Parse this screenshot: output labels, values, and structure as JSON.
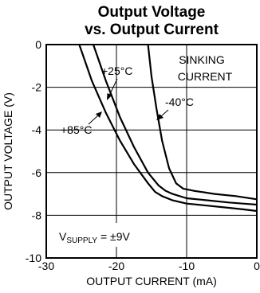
{
  "chart_data": {
    "type": "line",
    "title_line1": "Output Voltage",
    "title_line2": "vs. Output Current",
    "xlabel": "OUTPUT CURRENT (mA)",
    "ylabel": "OUTPUT VOLTAGE (V)",
    "xlim": [
      -30,
      0
    ],
    "ylim": [
      -10,
      0
    ],
    "xticks": [
      -30,
      -20,
      -10,
      0
    ],
    "yticks": [
      0,
      -2,
      -4,
      -6,
      -8,
      -10
    ],
    "grid": true,
    "series": [
      {
        "name": "+85°C",
        "color": "#000000",
        "x": [
          -25.3,
          -23.5,
          -21.5,
          -19.5,
          -17.5,
          -15.5,
          -14.5,
          -13.5,
          -12,
          -10,
          -7,
          -4,
          -2,
          0
        ],
        "y": [
          0,
          -1.7,
          -3.2,
          -4.5,
          -5.6,
          -6.5,
          -6.9,
          -7.1,
          -7.3,
          -7.45,
          -7.55,
          -7.65,
          -7.72,
          -7.8
        ]
      },
      {
        "name": "+25°C",
        "color": "#000000",
        "x": [
          -23.3,
          -21.5,
          -19.5,
          -17.5,
          -15.5,
          -14,
          -13,
          -12,
          -10,
          -7,
          -4,
          -2,
          0
        ],
        "y": [
          0,
          -1.7,
          -3.4,
          -4.8,
          -6.0,
          -6.6,
          -6.85,
          -7.0,
          -7.2,
          -7.3,
          -7.4,
          -7.45,
          -7.5
        ]
      },
      {
        "name": "-40°C",
        "color": "#000000",
        "x": [
          -15.5,
          -15.0,
          -14.3,
          -13.5,
          -12.5,
          -11.5,
          -10.5,
          -9,
          -6,
          -3,
          0
        ],
        "y": [
          0,
          -1.5,
          -3.0,
          -4.5,
          -5.8,
          -6.5,
          -6.75,
          -6.85,
          -7.0,
          -7.1,
          -7.25
        ]
      }
    ],
    "annotations": {
      "plus25": "+25°C",
      "minus40": "-40°C",
      "plus85": "+85°C",
      "sinking1": "SINKING",
      "sinking2": "CURRENT",
      "supply_main": "V",
      "supply_sub": "SUPPLY",
      "supply_value": " = ±9V"
    }
  }
}
